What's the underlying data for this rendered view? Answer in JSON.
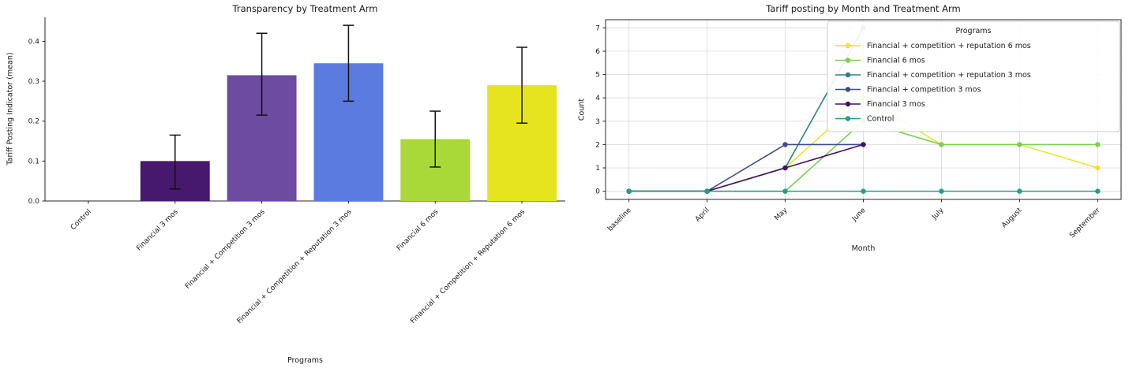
{
  "figure": {
    "background": "#ffffff",
    "text_color": "#1a1a1a",
    "grid_color": "#dcdcdc",
    "spine_color": "#262626"
  },
  "chart_data": [
    {
      "type": "bar",
      "title": "Transparency by Treatment Arm",
      "xlabel": "Programs",
      "ylabel": "Tariff Posting Indicator (mean)",
      "categories": [
        "Control",
        "Financial 3 mos",
        "Financial + Competition 3 mos",
        "Financial + Competition + Reputation 3 mos",
        "Financial 6 mos",
        "Financial + Competition + Reputation 6 mos"
      ],
      "values": [
        0,
        0.1,
        0.315,
        0.345,
        0.155,
        0.29
      ],
      "error_low": [
        0,
        0.03,
        0.215,
        0.25,
        0.085,
        0.195
      ],
      "error_high": [
        0,
        0.165,
        0.42,
        0.44,
        0.225,
        0.385
      ],
      "bar_colors": [
        "#440154",
        "#46196e",
        "#6c4ba1",
        "#5b7be0",
        "#a8d938",
        "#e5e41f"
      ],
      "yticks": [
        0.0,
        0.1,
        0.2,
        0.3,
        0.4
      ],
      "ylim": [
        0,
        0.46
      ],
      "grid": false,
      "legend_position": "none"
    },
    {
      "type": "line",
      "title": "Tariff posting by Month and Treatment Arm",
      "xlabel": "Month",
      "ylabel": "Count",
      "x": [
        "baseline",
        "April",
        "May",
        "June",
        "July",
        "August",
        "September"
      ],
      "legend_title": "Programs",
      "legend_position": "upper right",
      "grid": true,
      "yticks": [
        0,
        1,
        2,
        3,
        4,
        5,
        6,
        7
      ],
      "ylim": [
        -0.35,
        7.35
      ],
      "series": [
        {
          "name": "Financial + competition + reputation 6 mos",
          "color": "#f2e225",
          "values": [
            0,
            0,
            1,
            4,
            2,
            2,
            1
          ]
        },
        {
          "name": "Financial 6 mos",
          "color": "#7ad151",
          "values": [
            0,
            0,
            0,
            3,
            2,
            2,
            2
          ]
        },
        {
          "name": "Financial + competition + reputation 3 mos",
          "color": "#26828e",
          "values": [
            0,
            0,
            1,
            7,
            null,
            null,
            null
          ]
        },
        {
          "name": "Financial + competition 3 mos",
          "color": "#3e4a89",
          "values": [
            0,
            0,
            2,
            2,
            null,
            null,
            null
          ]
        },
        {
          "name": "Financial 3 mos",
          "color": "#471064",
          "values": [
            0,
            0,
            1,
            2,
            null,
            null,
            null
          ]
        },
        {
          "name": "Control",
          "color": "#1fa187",
          "values": [
            0,
            0,
            0,
            0,
            0,
            0,
            0
          ]
        }
      ]
    }
  ]
}
